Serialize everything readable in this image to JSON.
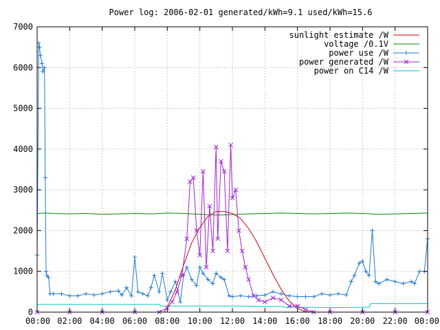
{
  "title": "Power log: 2006-02-01 generated/kWh=9.1 used/kWh=15.6",
  "colors": {
    "sunlight": "#cc0000",
    "voltage": "#008800",
    "power_use": "#1e78d2",
    "power_generated": "#a020d0",
    "c14": "#00c8c8",
    "grid": "#a0a0a0",
    "axis": "#000000"
  },
  "chart_data": {
    "type": "line",
    "title": "Power log: 2006-02-01 generated/kWh=9.1 used/kWh=15.6",
    "xlabel": "",
    "ylabel": "",
    "xlim": [
      0,
      24
    ],
    "ylim": [
      0,
      7000
    ],
    "grid": true,
    "legend_position": "top-right",
    "x_ticks": [
      "00:00",
      "02:00",
      "04:00",
      "06:00",
      "08:00",
      "10:00",
      "12:00",
      "14:00",
      "16:00",
      "18:00",
      "20:00",
      "22:00",
      "00:00"
    ],
    "y_ticks": [
      "0",
      "1000",
      "2000",
      "3000",
      "4000",
      "5000",
      "6000",
      "7000"
    ],
    "series": [
      {
        "name": "sunlight estimate /W",
        "style": "line",
        "x": [
          7.8,
          8.0,
          8.5,
          9.0,
          9.5,
          10.0,
          10.5,
          11.0,
          11.5,
          12.0,
          12.5,
          13.0,
          13.5,
          14.0,
          14.5,
          15.0,
          15.5,
          16.0,
          16.5,
          16.8
        ],
        "y": [
          0,
          120,
          560,
          1150,
          1700,
          2080,
          2350,
          2470,
          2470,
          2420,
          2300,
          2050,
          1720,
          1320,
          920,
          560,
          270,
          90,
          10,
          0
        ]
      },
      {
        "name": "voltage /0.1V",
        "style": "line",
        "x": [
          0.0,
          0.5,
          1.0,
          2.0,
          3.0,
          4.0,
          5.0,
          6.0,
          7.0,
          8.0,
          9.0,
          10.0,
          11.0,
          12.0,
          13.0,
          14.0,
          15.0,
          16.0,
          17.0,
          18.0,
          19.0,
          20.0,
          21.0,
          22.0,
          23.0,
          24.0
        ],
        "y": [
          2420,
          2430,
          2420,
          2410,
          2420,
          2400,
          2410,
          2420,
          2410,
          2430,
          2420,
          2400,
          2380,
          2390,
          2410,
          2420,
          2430,
          2420,
          2410,
          2420,
          2430,
          2420,
          2400,
          2410,
          2420,
          2430
        ]
      },
      {
        "name": "power use /W",
        "style": "line-plus",
        "x": [
          0.0,
          0.1,
          0.15,
          0.2,
          0.3,
          0.35,
          0.45,
          0.5,
          0.55,
          0.6,
          0.7,
          0.8,
          1.0,
          1.5,
          2.0,
          2.5,
          3.0,
          3.5,
          4.0,
          4.5,
          5.0,
          5.2,
          5.5,
          5.8,
          6.0,
          6.2,
          6.5,
          6.8,
          7.0,
          7.2,
          7.5,
          7.7,
          8.0,
          8.2,
          8.5,
          8.8,
          9.0,
          9.2,
          9.5,
          9.8,
          10.0,
          10.2,
          10.5,
          10.8,
          11.0,
          11.3,
          11.5,
          11.8,
          12.0,
          12.5,
          13.0,
          13.5,
          14.0,
          14.5,
          15.0,
          15.5,
          16.0,
          16.5,
          17.0,
          17.5,
          18.0,
          18.5,
          19.0,
          19.3,
          19.5,
          19.8,
          20.0,
          20.2,
          20.4,
          20.6,
          20.8,
          21.0,
          21.5,
          22.0,
          22.5,
          23.0,
          23.2,
          23.5,
          23.8,
          24.0
        ],
        "y": [
          1400,
          6600,
          6500,
          6300,
          6100,
          5900,
          6000,
          3300,
          1000,
          900,
          850,
          450,
          450,
          450,
          400,
          400,
          450,
          420,
          450,
          500,
          520,
          420,
          600,
          400,
          1350,
          500,
          450,
          400,
          600,
          900,
          500,
          950,
          300,
          500,
          750,
          250,
          900,
          1100,
          800,
          650,
          1100,
          950,
          800,
          700,
          950,
          850,
          800,
          400,
          380,
          400,
          380,
          400,
          420,
          500,
          450,
          400,
          380,
          380,
          380,
          450,
          420,
          450,
          420,
          750,
          900,
          1200,
          1250,
          1000,
          900,
          2000,
          750,
          700,
          800,
          750,
          700,
          750,
          700,
          1000,
          1000,
          1800
        ]
      },
      {
        "name": "power generated /W",
        "style": "line-x",
        "x": [
          0.0,
          2.0,
          4.0,
          6.0,
          7.5,
          8.0,
          8.3,
          8.6,
          8.9,
          9.2,
          9.4,
          9.6,
          9.8,
          10.0,
          10.2,
          10.4,
          10.6,
          10.8,
          11.0,
          11.1,
          11.3,
          11.5,
          11.7,
          11.9,
          12.0,
          12.2,
          12.4,
          12.6,
          12.8,
          13.0,
          13.3,
          13.6,
          14.0,
          14.5,
          15.0,
          15.5,
          16.0,
          16.5,
          17.0,
          18.0,
          20.0,
          22.0,
          24.0
        ],
        "y": [
          0,
          0,
          0,
          0,
          0,
          100,
          250,
          500,
          900,
          1800,
          3200,
          3300,
          2000,
          1400,
          3450,
          1100,
          2600,
          1500,
          4050,
          1800,
          3700,
          3450,
          1500,
          4100,
          2800,
          3000,
          2000,
          1500,
          1100,
          800,
          400,
          300,
          250,
          350,
          300,
          150,
          150,
          60,
          0,
          0,
          0,
          0,
          0
        ]
      },
      {
        "name": "power on C14 /W",
        "style": "line",
        "x": [
          0.0,
          2.0,
          4.0,
          6.0,
          7.5,
          7.6,
          8.0,
          10.0,
          12.0,
          14.0,
          15.0,
          15.2,
          16.0,
          18.0,
          19.0,
          20.0,
          20.4,
          20.5,
          22.0,
          24.0
        ],
        "y": [
          190,
          190,
          190,
          190,
          190,
          150,
          150,
          150,
          150,
          140,
          140,
          120,
          120,
          110,
          110,
          120,
          120,
          210,
          210,
          210
        ]
      }
    ]
  }
}
